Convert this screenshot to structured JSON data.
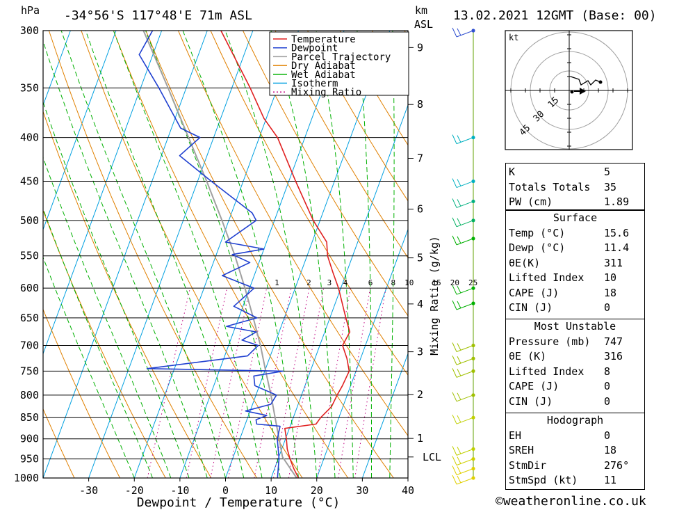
{
  "header": {
    "location": "-34°56'S  117°48'E  71m  ASL",
    "datetime": "13.02.2021  12GMT  (Base: 00)",
    "hpa_label": "hPa",
    "km_label": "km",
    "asl_label": "ASL"
  },
  "chart_data": {
    "type": "skew-t",
    "xlabel": "Dewpoint / Temperature (°C)",
    "ylabel_right": "Mixing Ratio (g/kg)",
    "xlim": [
      -40,
      40
    ],
    "pressure_levels": [
      300,
      350,
      400,
      450,
      500,
      550,
      600,
      650,
      700,
      750,
      800,
      850,
      900,
      950,
      1000
    ],
    "pressure_labels": [
      "300",
      "350",
      "400",
      "450",
      "500",
      "550",
      "600",
      "650",
      "700",
      "750",
      "800",
      "850",
      "900",
      "950",
      "1000"
    ],
    "temp_ticks": [
      -30,
      -20,
      -10,
      0,
      10,
      20,
      30,
      40
    ],
    "temp_tick_labels": [
      "-30",
      "-20",
      "-10",
      "0",
      "10",
      "20",
      "30",
      "40"
    ],
    "km_ticks": [
      {
        "label": "9",
        "p": 314
      },
      {
        "label": "8",
        "p": 366
      },
      {
        "label": "7",
        "p": 423
      },
      {
        "label": "6",
        "p": 485
      },
      {
        "label": "5",
        "p": 553
      },
      {
        "label": "4",
        "p": 626
      },
      {
        "label": "3",
        "p": 712
      },
      {
        "label": "2",
        "p": 799
      },
      {
        "label": "1",
        "p": 899
      }
    ],
    "lcl": {
      "label": "LCL",
      "p": 945
    },
    "mixing_ratio_labels": [
      {
        "label": "1",
        "t": -4
      },
      {
        "label": "2",
        "t": 3
      },
      {
        "label": "3",
        "t": 7.5
      },
      {
        "label": "4",
        "t": 11
      },
      {
        "label": "6",
        "t": 16.5
      },
      {
        "label": "8",
        "t": 21.5
      },
      {
        "label": "10",
        "t": 25
      },
      {
        "label": "15",
        "t": 31
      },
      {
        "label": "20",
        "t": 35
      },
      {
        "label": "25",
        "t": 39
      }
    ],
    "legend": [
      {
        "name": "Temperature",
        "color": "#e02020",
        "dash": ""
      },
      {
        "name": "Dewpoint",
        "color": "#2040d0",
        "dash": ""
      },
      {
        "name": "Parcel Trajectory",
        "color": "#a0a0a0",
        "dash": ""
      },
      {
        "name": "Dry Adiabat",
        "color": "#e08000",
        "dash": ""
      },
      {
        "name": "Wet Adiabat",
        "color": "#00b000",
        "dash": ""
      },
      {
        "name": "Isotherm",
        "color": "#00a0e0",
        "dash": ""
      },
      {
        "name": "Mixing Ratio",
        "color": "#c00080",
        "dash": "2,3"
      }
    ],
    "temperature": [
      {
        "p": 1000,
        "t": 16.0
      },
      {
        "p": 975,
        "t": 14.2
      },
      {
        "p": 950,
        "t": 12.6
      },
      {
        "p": 925,
        "t": 11.2
      },
      {
        "p": 900,
        "t": 10.2
      },
      {
        "p": 875,
        "t": 9.0
      },
      {
        "p": 865,
        "t": 15.5
      },
      {
        "p": 850,
        "t": 16.0
      },
      {
        "p": 825,
        "t": 17.5
      },
      {
        "p": 800,
        "t": 17.8
      },
      {
        "p": 780,
        "t": 18.2
      },
      {
        "p": 750,
        "t": 18.5
      },
      {
        "p": 725,
        "t": 17.0
      },
      {
        "p": 700,
        "t": 15.0
      },
      {
        "p": 675,
        "t": 15.5
      },
      {
        "p": 650,
        "t": 13.5
      },
      {
        "p": 600,
        "t": 9.5
      },
      {
        "p": 575,
        "t": 7.0
      },
      {
        "p": 550,
        "t": 4.5
      },
      {
        "p": 530,
        "t": 3.2
      },
      {
        "p": 500,
        "t": -1.5
      },
      {
        "p": 450,
        "t": -8.5
      },
      {
        "p": 400,
        "t": -16.0
      },
      {
        "p": 380,
        "t": -20.5
      },
      {
        "p": 350,
        "t": -26.0
      },
      {
        "p": 300,
        "t": -37.0
      }
    ],
    "dewpoint": [
      {
        "p": 1000,
        "t": 11.4
      },
      {
        "p": 975,
        "t": 10.8
      },
      {
        "p": 950,
        "t": 10.2
      },
      {
        "p": 900,
        "t": 8.2
      },
      {
        "p": 870,
        "t": 7.8
      },
      {
        "p": 865,
        "t": 2.5
      },
      {
        "p": 855,
        "t": 2.0
      },
      {
        "p": 845,
        "t": 4.0
      },
      {
        "p": 835,
        "t": -1.0
      },
      {
        "p": 820,
        "t": 4.0
      },
      {
        "p": 800,
        "t": 4.5
      },
      {
        "p": 780,
        "t": -1.0
      },
      {
        "p": 760,
        "t": -2.0
      },
      {
        "p": 750,
        "t": 4.0
      },
      {
        "p": 745,
        "t": -26.0
      },
      {
        "p": 720,
        "t": -5.0
      },
      {
        "p": 700,
        "t": -3.5
      },
      {
        "p": 690,
        "t": -7.5
      },
      {
        "p": 675,
        "t": -5.0
      },
      {
        "p": 665,
        "t": -12.0
      },
      {
        "p": 650,
        "t": -6.0
      },
      {
        "p": 630,
        "t": -12.0
      },
      {
        "p": 600,
        "t": -9.0
      },
      {
        "p": 580,
        "t": -17.0
      },
      {
        "p": 560,
        "t": -12.0
      },
      {
        "p": 548,
        "t": -16.5
      },
      {
        "p": 540,
        "t": -10.0
      },
      {
        "p": 530,
        "t": -19.0
      },
      {
        "p": 500,
        "t": -14.0
      },
      {
        "p": 490,
        "t": -15.5
      },
      {
        "p": 450,
        "t": -27.0
      },
      {
        "p": 420,
        "t": -36.0
      },
      {
        "p": 400,
        "t": -33.0
      },
      {
        "p": 390,
        "t": -38.0
      },
      {
        "p": 350,
        "t": -46.0
      },
      {
        "p": 320,
        "t": -53.0
      },
      {
        "p": 300,
        "t": -52.0
      }
    ],
    "parcel": [
      {
        "p": 1000,
        "t": 15.6
      },
      {
        "p": 945,
        "t": 10.8
      },
      {
        "p": 900,
        "t": 8.6
      },
      {
        "p": 850,
        "t": 6.0
      },
      {
        "p": 800,
        "t": 3.3
      },
      {
        "p": 750,
        "t": 0.2
      },
      {
        "p": 700,
        "t": -3.0
      },
      {
        "p": 650,
        "t": -6.8
      },
      {
        "p": 600,
        "t": -11.0
      },
      {
        "p": 550,
        "t": -15.8
      },
      {
        "p": 500,
        "t": -21.5
      },
      {
        "p": 450,
        "t": -28.0
      },
      {
        "p": 400,
        "t": -35.5
      },
      {
        "p": 350,
        "t": -44.0
      },
      {
        "p": 300,
        "t": -54.0
      }
    ],
    "wind_levels": [
      {
        "p": 300,
        "color": "#3050d0"
      },
      {
        "p": 400,
        "color": "#00b0c0"
      },
      {
        "p": 450,
        "color": "#00b0c0"
      },
      {
        "p": 475,
        "color": "#00b080"
      },
      {
        "p": 500,
        "color": "#00b060"
      },
      {
        "p": 525,
        "color": "#00b000"
      },
      {
        "p": 600,
        "color": "#00b000"
      },
      {
        "p": 625,
        "color": "#00b000"
      },
      {
        "p": 700,
        "color": "#a0c000"
      },
      {
        "p": 725,
        "color": "#a0c000"
      },
      {
        "p": 750,
        "color": "#a0c000"
      },
      {
        "p": 800,
        "color": "#a0c000"
      },
      {
        "p": 850,
        "color": "#c0d000"
      },
      {
        "p": 925,
        "color": "#c0d000"
      },
      {
        "p": 950,
        "color": "#d0d000"
      },
      {
        "p": 975,
        "color": "#e0d000"
      },
      {
        "p": 1000,
        "color": "#e0d000"
      }
    ]
  },
  "hodograph": {
    "unit_label": "kt",
    "ring_labels": [
      "15",
      "30",
      "45"
    ]
  },
  "indices": {
    "rows": [
      {
        "label": "K",
        "value": "5"
      },
      {
        "label": "Totals Totals",
        "value": "35"
      },
      {
        "label": "PW (cm)",
        "value": "1.89"
      }
    ]
  },
  "surface": {
    "title": "Surface",
    "rows": [
      {
        "label": "Temp (°C)",
        "value": "15.6"
      },
      {
        "label": "Dewp (°C)",
        "value": "11.4"
      },
      {
        "label": "θE(K)",
        "value": "311"
      },
      {
        "label": "Lifted Index",
        "value": "10"
      },
      {
        "label": "CAPE (J)",
        "value": "18"
      },
      {
        "label": "CIN (J)",
        "value": "0"
      }
    ]
  },
  "most_unstable": {
    "title": "Most Unstable",
    "rows": [
      {
        "label": "Pressure (mb)",
        "value": "747"
      },
      {
        "label": "θE (K)",
        "value": "316"
      },
      {
        "label": "Lifted Index",
        "value": "8"
      },
      {
        "label": "CAPE (J)",
        "value": "0"
      },
      {
        "label": "CIN (J)",
        "value": "0"
      }
    ]
  },
  "hodograph_table": {
    "title": "Hodograph",
    "rows": [
      {
        "label": "EH",
        "value": "0"
      },
      {
        "label": "SREH",
        "value": "18"
      },
      {
        "label": "StmDir",
        "value": "276°"
      },
      {
        "label": "StmSpd (kt)",
        "value": "11"
      }
    ]
  },
  "footer": {
    "copyright": "©weatheronline.co.uk"
  }
}
